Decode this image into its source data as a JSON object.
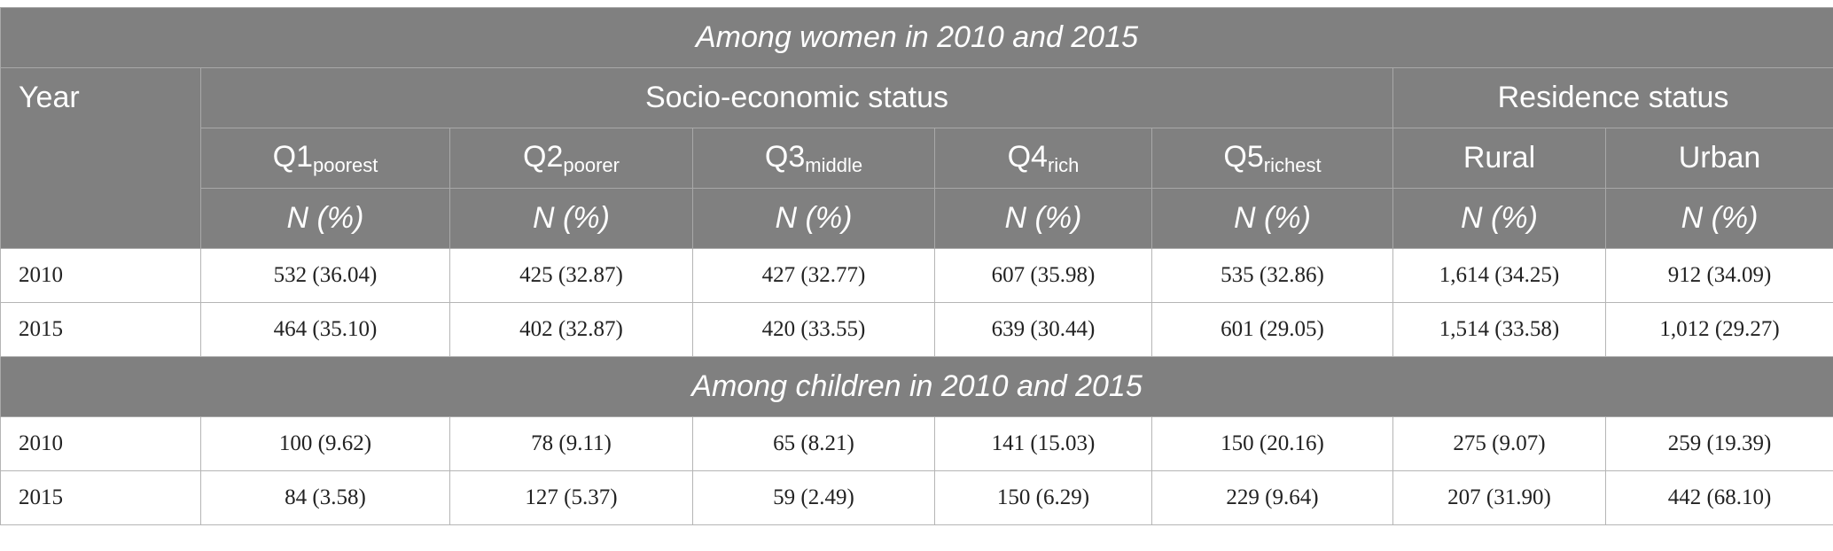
{
  "section_women": "Among women in 2010 and 2015",
  "section_children": "Among children in 2010 and 2015",
  "headers": {
    "year": "Year",
    "ses": "Socio-economic status",
    "residence": "Residence status",
    "quintiles": [
      {
        "main": "Q1",
        "sub": "poorest"
      },
      {
        "main": "Q2",
        "sub": "poorer"
      },
      {
        "main": "Q3",
        "sub": "middle"
      },
      {
        "main": "Q4",
        "sub": "rich"
      },
      {
        "main": "Q5",
        "sub": "richest"
      }
    ],
    "rural": "Rural",
    "urban": "Urban",
    "np": "N (%)"
  },
  "women_rows": [
    {
      "year": "2010",
      "cells": [
        "532 (36.04)",
        "425 (32.87)",
        "427 (32.77)",
        "607 (35.98)",
        "535 (32.86)",
        "1,614 (34.25)",
        "912 (34.09)"
      ]
    },
    {
      "year": "2015",
      "cells": [
        "464 (35.10)",
        "402 (32.87)",
        "420 (33.55)",
        "639 (30.44)",
        "601 (29.05)",
        "1,514 (33.58)",
        "1,012 (29.27)"
      ]
    }
  ],
  "children_rows": [
    {
      "year": "2010",
      "cells": [
        "100 (9.62)",
        "78 (9.11)",
        "65 (8.21)",
        "141 (15.03)",
        "150 (20.16)",
        "275 (9.07)",
        "259 (19.39)"
      ]
    },
    {
      "year": "2015",
      "cells": [
        "84 (3.58)",
        "127 (5.37)",
        "59 (2.49)",
        "150 (6.29)",
        "229 (9.64)",
        "207 (31.90)",
        "442 (68.10)"
      ]
    }
  ]
}
